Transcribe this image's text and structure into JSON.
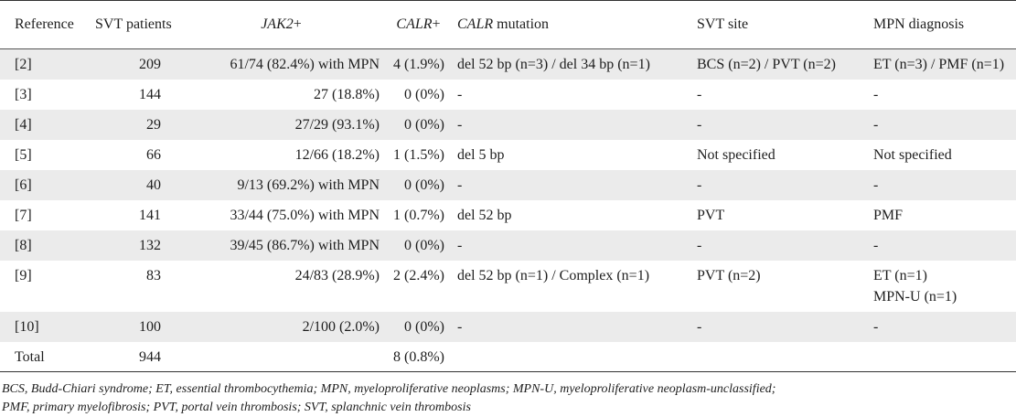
{
  "table": {
    "headers": {
      "reference": "Reference",
      "svt_patients": "SVT patients",
      "jak2_name": "JAK2",
      "jak2_suffix": "+",
      "calr_name": "CALR",
      "calr_suffix": "+",
      "calr_mut_name": "CALR",
      "calr_mut_suffix": " mutation",
      "svt_site": "SVT site",
      "mpn_diagnosis": "MPN diagnosis"
    },
    "rows": [
      {
        "ref": "[2]",
        "svt": "209",
        "jak2": "61/74 (82.4%) with MPN",
        "calr": "4 (1.9%)",
        "mutation": "del 52 bp (n=3) / del 34 bp (n=1)",
        "site": "BCS (n=2) / PVT (n=2)",
        "mpn1": "ET (n=3) / PMF (n=1)",
        "mpn2": ""
      },
      {
        "ref": "[3]",
        "svt": "144",
        "jak2": "27 (18.8%)",
        "calr": "0 (0%)",
        "mutation": "-",
        "site": "-",
        "mpn1": "-",
        "mpn2": ""
      },
      {
        "ref": "[4]",
        "svt": "29",
        "jak2": "27/29 (93.1%)",
        "calr": "0 (0%)",
        "mutation": "-",
        "site": "-",
        "mpn1": "-",
        "mpn2": ""
      },
      {
        "ref": "[5]",
        "svt": "66",
        "jak2": "12/66 (18.2%)",
        "calr": "1 (1.5%)",
        "mutation": "del 5 bp",
        "site": "Not specified",
        "mpn1": "Not specified",
        "mpn2": ""
      },
      {
        "ref": "[6]",
        "svt": "40",
        "jak2": "9/13 (69.2%) with MPN",
        "calr": "0 (0%)",
        "mutation": "-",
        "site": "-",
        "mpn1": "-",
        "mpn2": ""
      },
      {
        "ref": "[7]",
        "svt": "141",
        "jak2": "33/44 (75.0%) with MPN",
        "calr": "1 (0.7%)",
        "mutation": "del 52 bp",
        "site": "PVT",
        "mpn1": "PMF",
        "mpn2": ""
      },
      {
        "ref": "[8]",
        "svt": "132",
        "jak2": "39/45 (86.7%) with MPN",
        "calr": "0 (0%)",
        "mutation": "-",
        "site": "-",
        "mpn1": "-",
        "mpn2": ""
      },
      {
        "ref": "[9]",
        "svt": "83",
        "jak2": "24/83 (28.9%)",
        "calr": "2 (2.4%)",
        "mutation": "del 52 bp (n=1) / Complex (n=1)",
        "site": "PVT (n=2)",
        "mpn1": "ET (n=1)",
        "mpn2": "MPN-U (n=1)"
      },
      {
        "ref": "[10]",
        "svt": "100",
        "jak2": "2/100 (2.0%)",
        "calr": "0 (0%)",
        "mutation": "-",
        "site": "-",
        "mpn1": "-",
        "mpn2": ""
      },
      {
        "ref": "Total",
        "svt": "944",
        "jak2": "",
        "calr": "8 (0.8%)",
        "mutation": "",
        "site": "",
        "mpn1": "",
        "mpn2": ""
      }
    ]
  },
  "footnote": {
    "line1": "BCS, Budd-Chiari syndrome; ET, essential thrombocythemia; MPN, myeloproliferative neoplasms; MPN-U, myeloproliferative neoplasm-unclassified;",
    "line2": "PMF, primary myelofibrosis; PVT, portal vein thrombosis; SVT, splanchnic vein thrombosis"
  },
  "colors": {
    "row_shade": "#ebebeb",
    "rule": "#333333",
    "text": "#1e1e1e"
  }
}
